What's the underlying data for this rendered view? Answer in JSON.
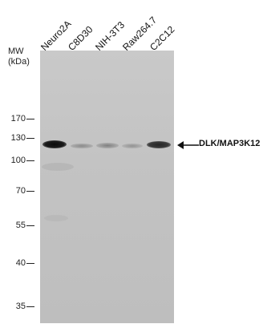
{
  "lanes": [
    "Neuro2A",
    "C8D30",
    "NIH-3T3",
    "Raw264.7",
    "C2C12"
  ],
  "mw": {
    "header_line1": "MW",
    "header_line2": "(kDa)",
    "markers": [
      "170",
      "130",
      "100",
      "70",
      "55",
      "40",
      "35"
    ]
  },
  "target": {
    "label": "DLK/MAP3K12"
  }
}
